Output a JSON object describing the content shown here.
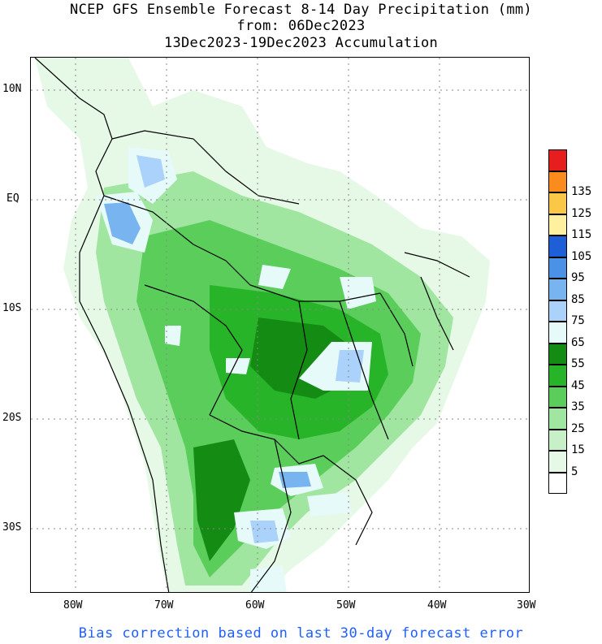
{
  "titles": {
    "line1": "NCEP GFS Ensemble Forecast 8-14 Day Precipitation (mm)",
    "line2": "from: 06Dec2023",
    "line3": "13Dec2023-19Dec2023 Accumulation"
  },
  "lat_labels": [
    "10N",
    "EQ",
    "10S",
    "20S",
    "30S"
  ],
  "lon_labels": [
    "80W",
    "70W",
    "60W",
    "50W",
    "40W",
    "30W"
  ],
  "colorbar": {
    "levels": [
      "5",
      "15",
      "25",
      "35",
      "45",
      "55",
      "65",
      "75",
      "85",
      "95",
      "105",
      "115",
      "125",
      "135"
    ],
    "colors": [
      "#ffffff",
      "#e6f8e6",
      "#c8f0c8",
      "#a0e6a0",
      "#5acd5a",
      "#28b428",
      "#148c14",
      "#e6fafa",
      "#aad2fa",
      "#78b4f0",
      "#4b91e6",
      "#1e5fd7",
      "#fff0a0",
      "#fac846",
      "#fa8c1e",
      "#e61e1e"
    ]
  },
  "footer": "Bias correction based on last 30-day forecast error"
}
